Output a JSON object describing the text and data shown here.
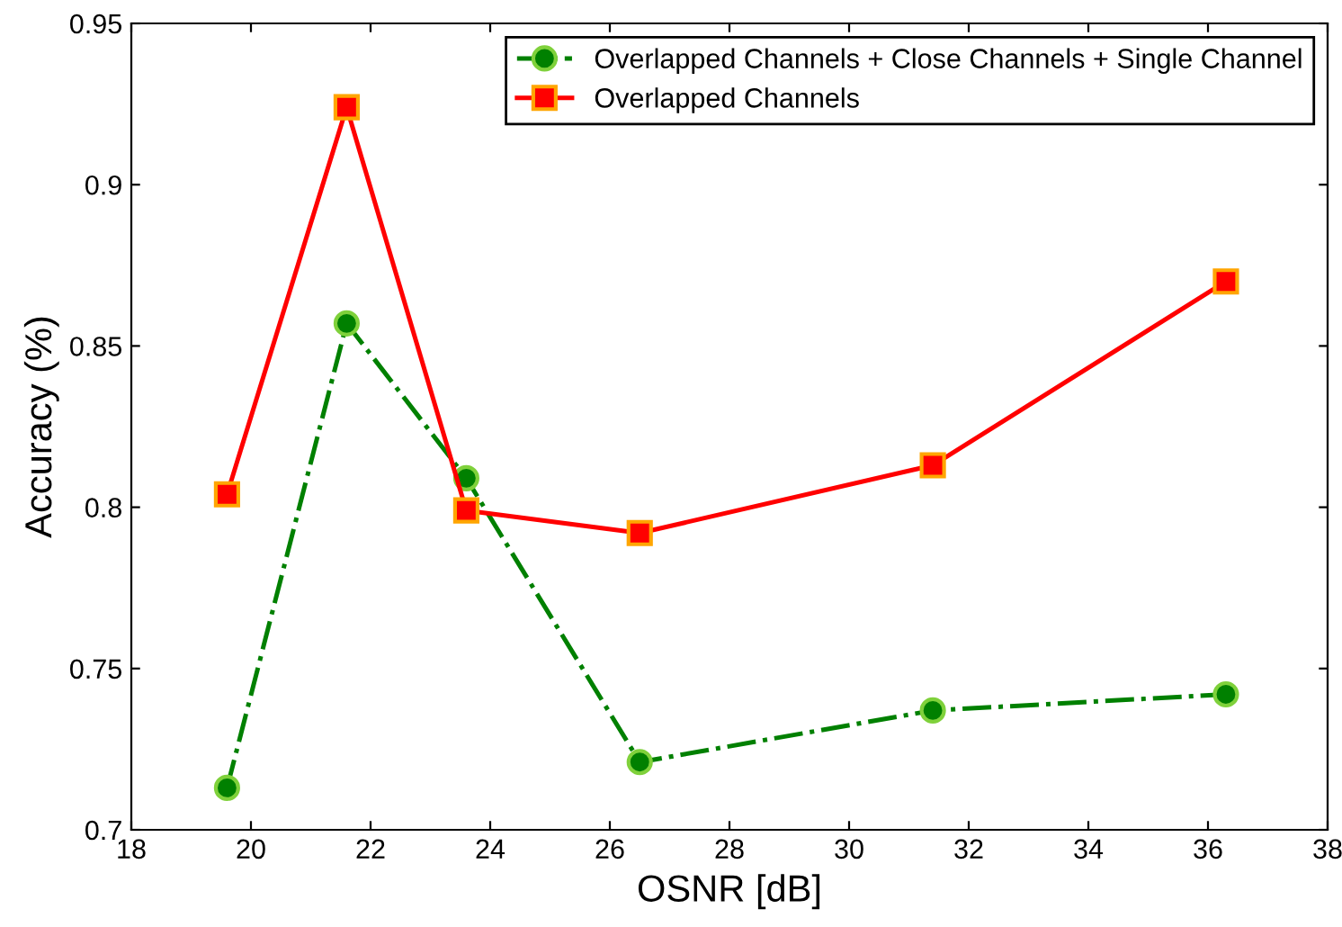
{
  "chart_data": {
    "type": "line",
    "xlabel": "OSNR [dB]",
    "ylabel": "Accuracy (%)",
    "x": [
      19.6,
      21.6,
      23.6,
      26.5,
      31.4,
      36.3
    ],
    "series": [
      {
        "name": "Overlapped Channels + Close Channels + Single Channel",
        "color": "#008000",
        "marker": "circle",
        "line_style": "dashdot",
        "values": [
          0.713,
          0.857,
          0.809,
          0.721,
          0.737,
          0.742
        ]
      },
      {
        "name": "Overlapped Channels",
        "color": "#ff0000",
        "marker": "square",
        "line_style": "solid",
        "values": [
          0.804,
          0.924,
          0.799,
          0.792,
          0.813,
          0.87
        ]
      }
    ],
    "xlim": [
      18,
      38
    ],
    "xticks": [
      18,
      20,
      22,
      24,
      26,
      28,
      30,
      32,
      34,
      36,
      38
    ],
    "ylim": [
      0.7,
      0.95
    ],
    "yticks": [
      0.7,
      0.75,
      0.8,
      0.85,
      0.9,
      0.95
    ],
    "grid": false,
    "legend": "top right"
  }
}
